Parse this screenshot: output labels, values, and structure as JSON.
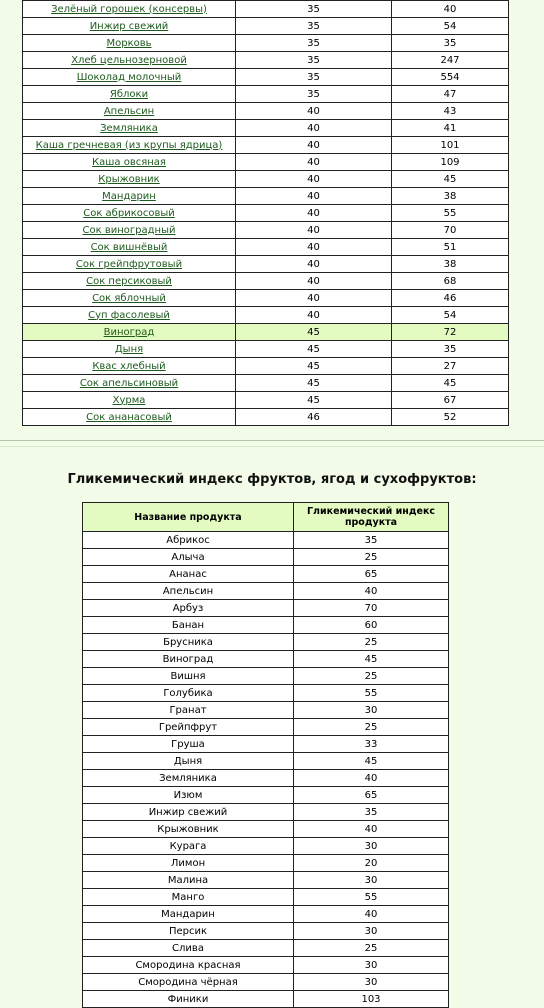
{
  "table1": {
    "rows": [
      [
        "Зелёный горошек (консервы)",
        "35",
        "40"
      ],
      [
        "Инжир свежий",
        "35",
        "54"
      ],
      [
        "Морковь",
        "35",
        "35"
      ],
      [
        "Хлеб цельнозерновой",
        "35",
        "247"
      ],
      [
        "Шоколад молочный",
        "35",
        "554"
      ],
      [
        "Яблоки",
        "35",
        "47"
      ],
      [
        "Апельсин",
        "40",
        "43"
      ],
      [
        "Земляника",
        "40",
        "41"
      ],
      [
        "Каша гречневая (из крупы ядрица)",
        "40",
        "101"
      ],
      [
        "Каша овсяная",
        "40",
        "109"
      ],
      [
        "Крыжовник",
        "40",
        "45"
      ],
      [
        "Мандарин",
        "40",
        "38"
      ],
      [
        "Сок абрикосовый",
        "40",
        "55"
      ],
      [
        "Сок виноградный",
        "40",
        "70"
      ],
      [
        "Сок вишнёвый",
        "40",
        "51"
      ],
      [
        "Сок грейпфрутовый",
        "40",
        "38"
      ],
      [
        "Сок персиковый",
        "40",
        "68"
      ],
      [
        "Сок яблочный",
        "40",
        "46"
      ],
      [
        "Суп фасолевый",
        "40",
        "54"
      ],
      [
        "Виноград",
        "45",
        "72"
      ],
      [
        "Дыня",
        "45",
        "35"
      ],
      [
        "Квас хлебный",
        "45",
        "27"
      ],
      [
        "Сок апельсиновый",
        "45",
        "45"
      ],
      [
        "Хурма",
        "45",
        "67"
      ],
      [
        "Сок ананасовый",
        "46",
        "52"
      ]
    ],
    "highlight_row": 19
  },
  "section2": {
    "title": "Гликемический индекс фруктов, ягод и сухофруктов:",
    "headers": [
      "Название продукта",
      "Гликемический индекс продукта"
    ],
    "rows": [
      [
        "Абрикос",
        "35"
      ],
      [
        "Алыча",
        "25"
      ],
      [
        "Ананас",
        "65"
      ],
      [
        "Апельсин",
        "40"
      ],
      [
        "Арбуз",
        "70"
      ],
      [
        "Банан",
        "60"
      ],
      [
        "Брусника",
        "25"
      ],
      [
        "Виноград",
        "45"
      ],
      [
        "Вишня",
        "25"
      ],
      [
        "Голубика",
        "55"
      ],
      [
        "Гранат",
        "30"
      ],
      [
        "Грейпфрут",
        "25"
      ],
      [
        "Груша",
        "33"
      ],
      [
        "Дыня",
        "45"
      ],
      [
        "Земляника",
        "40"
      ],
      [
        "Изюм",
        "65"
      ],
      [
        "Инжир свежий",
        "35"
      ],
      [
        "Крыжовник",
        "40"
      ],
      [
        "Курага",
        "30"
      ],
      [
        "Лимон",
        "20"
      ],
      [
        "Малина",
        "30"
      ],
      [
        "Манго",
        "55"
      ],
      [
        "Мандарин",
        "40"
      ],
      [
        "Персик",
        "30"
      ],
      [
        "Слива",
        "25"
      ],
      [
        "Смородина красная",
        "30"
      ],
      [
        "Смородина чёрная",
        "30"
      ],
      [
        "Финики",
        "103"
      ]
    ]
  },
  "colors": {
    "background": "#f3fbe9",
    "highlight": "#e3fac0",
    "link": "#1e5a1e"
  }
}
